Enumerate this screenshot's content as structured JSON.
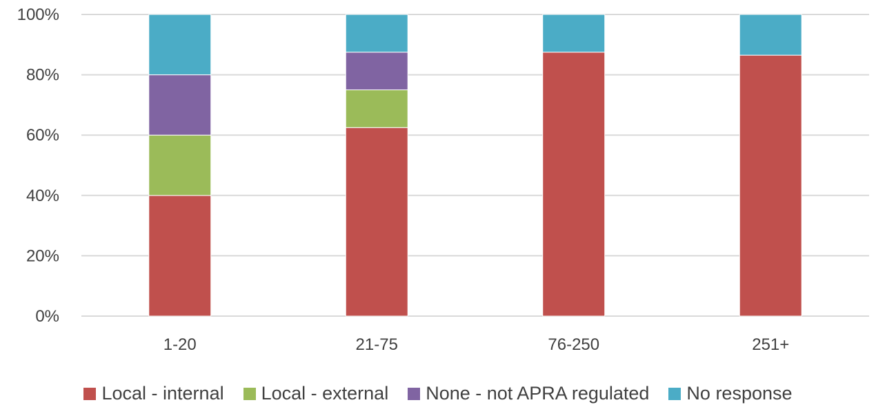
{
  "chart_data": {
    "type": "bar",
    "stacked": true,
    "title": "",
    "xlabel": "",
    "ylabel": "",
    "ylim": [
      0,
      100
    ],
    "y_ticks": [
      "0%",
      "20%",
      "40%",
      "60%",
      "80%",
      "100%"
    ],
    "y_tick_values": [
      0,
      20,
      40,
      60,
      80,
      100
    ],
    "grid": true,
    "legend_position": "bottom",
    "categories": [
      "1-20",
      "21-75",
      "76-250",
      "251+"
    ],
    "series": [
      {
        "name": "Local - internal",
        "color": "#C0504D",
        "values": [
          40,
          62.5,
          87.5,
          86.5
        ]
      },
      {
        "name": "Local - external",
        "color": "#9BBB59",
        "values": [
          20,
          12.5,
          0,
          0
        ]
      },
      {
        "name": "None - not APRA regulated",
        "color": "#8064A2",
        "values": [
          20,
          12.5,
          0,
          0
        ]
      },
      {
        "name": "No response",
        "color": "#4BACC6",
        "values": [
          20,
          12.5,
          12.5,
          13.5
        ]
      }
    ]
  }
}
